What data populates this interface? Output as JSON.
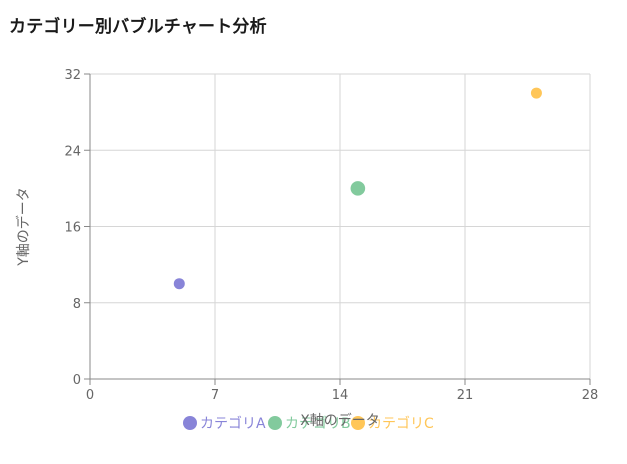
{
  "chart_data": {
    "type": "scatter",
    "title": "カテゴリー別バブルチャート分析",
    "xlabel": "X軸のデータ",
    "ylabel": "Y軸のデータ",
    "xlim": [
      0,
      28
    ],
    "ylim": [
      0,
      32
    ],
    "x_ticks": [
      0,
      7,
      14,
      21,
      28
    ],
    "y_ticks": [
      0,
      8,
      16,
      24,
      32
    ],
    "grid": true,
    "legend_position": "bottom",
    "series": [
      {
        "name": "カテゴリA",
        "color": "#8884d8",
        "points": [
          {
            "x": 5,
            "y": 10,
            "size": 1
          }
        ]
      },
      {
        "name": "カテゴリB",
        "color": "#82ca9d",
        "points": [
          {
            "x": 15,
            "y": 20,
            "size": 2
          }
        ]
      },
      {
        "name": "カテゴリC",
        "color": "#ffc658",
        "points": [
          {
            "x": 25,
            "y": 30,
            "size": 1
          }
        ]
      }
    ]
  }
}
